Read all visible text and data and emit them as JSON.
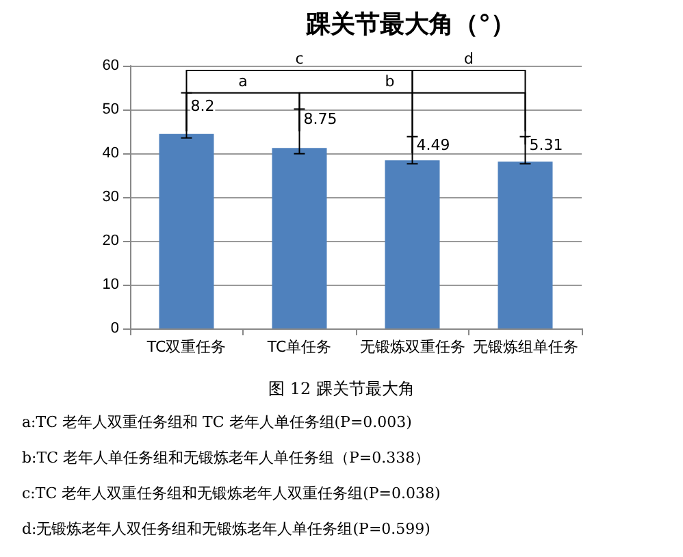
{
  "chart_data": {
    "type": "bar",
    "title": "踝关节最大角（°）",
    "categories": [
      "TC双重任务",
      "TC单任务",
      "无锻炼双重任务",
      "无锻炼组单任务"
    ],
    "values": [
      44.4,
      41.2,
      38.4,
      38.1
    ],
    "color": "#4f81bd",
    "errors": [
      [
        43.5,
        53.8
      ],
      [
        39.9,
        50.1
      ],
      [
        37.6,
        43.8
      ],
      [
        37.6,
        43.8
      ]
    ],
    "ylim": [
      0,
      60
    ],
    "yticks": [
      0,
      10,
      20,
      30,
      40,
      50,
      60
    ],
    "grid": "y",
    "annotations": [
      "a",
      "b",
      "c",
      "d",
      "图 12 踝关节最大角",
      {
        "text": "8.2",
        "x": "TC双重任务",
        "y": 51
      },
      {
        "text": "8.75",
        "x": "TC单任务",
        "y": 48
      },
      {
        "text": "4.49",
        "x": "无锻炼双重任务",
        "y": 42
      },
      {
        "text": "5.31",
        "x": "无锻炼组单任务",
        "y": 42
      },
      "a:TC 老年人双重任务组和 TC 老年人单任务组(P=0.003)",
      "b:TC 老年人单任务组和无锻炼老年人单任务组（P=0.338）",
      "c:TC 老年人双重任务组和无锻炼老年人双重任务组(P=0.038)",
      "d:无锻炼老年人双任务组和无锻炼老年人单任务组(P=0.599)"
    ]
  }
}
